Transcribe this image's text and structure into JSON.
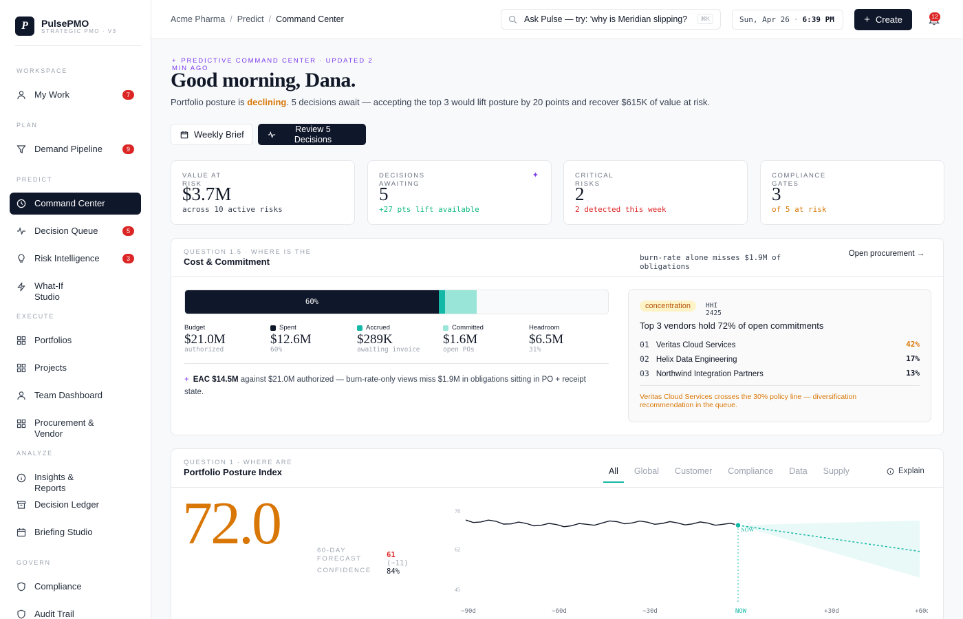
{
  "brand": {
    "logo_letter": "P",
    "name": "PulsePMO",
    "subtitle": "STRATEGIC PMO · V3"
  },
  "sidebar": {
    "sections": {
      "workspace": "WORKSPACE",
      "plan": "PLAN",
      "predict": "PREDICT",
      "execute": "EXECUTE",
      "analyze": "ANALYZE",
      "govern": "GOVERN"
    },
    "items": [
      {
        "label": "My Work",
        "badge": "7",
        "icon": "user-icon"
      },
      {
        "label": "Demand Pipeline",
        "badge": "9",
        "icon": "funnel-icon"
      },
      {
        "label": "Command Center",
        "icon": "clock-icon",
        "active": true
      },
      {
        "label": "Decision Queue",
        "badge": "5",
        "icon": "pulse-icon"
      },
      {
        "label": "Risk Intelligence",
        "badge": "3",
        "icon": "bulb-icon"
      },
      {
        "label": "What-If Studio",
        "icon": "bolt-icon"
      },
      {
        "label": "Portfolios",
        "icon": "grid-icon"
      },
      {
        "label": "Projects",
        "icon": "grid-icon"
      },
      {
        "label": "Team Dashboard",
        "icon": "user-icon"
      },
      {
        "label": "Procurement & Vendor",
        "icon": "grid-icon"
      },
      {
        "label": "Insights & Reports",
        "icon": "info-icon"
      },
      {
        "label": "Decision Ledger",
        "icon": "archive-icon"
      },
      {
        "label": "Briefing Studio",
        "icon": "calendar-icon"
      },
      {
        "label": "Compliance",
        "icon": "shield-icon"
      },
      {
        "label": "Audit Trail",
        "icon": "shield-icon"
      }
    ]
  },
  "header": {
    "breadcrumbs": [
      "Acme Pharma",
      "Predict",
      "Command Center"
    ],
    "ask_text": "Ask Pulse — try: 'why is Meridian slipping?",
    "ask_shortcut": "⌘K",
    "date": "Sun, Apr 26",
    "time": "6:39 PM",
    "create_label": "Create",
    "notifications": "12"
  },
  "hero": {
    "eyebrow": "PREDICTIVE COMMAND CENTER · UPDATED 2 MIN AGO",
    "greeting": "Good morning, Dana.",
    "summary_pre": "Portfolio posture is ",
    "summary_status": "declining",
    "summary_post": ". 5 decisions await — accepting the top 3 would lift posture by 20 points and recover $615K of value at risk.",
    "brief_button": "Weekly Brief",
    "review_button": "Review 5 Decisions"
  },
  "kpis": [
    {
      "label": "VALUE AT RISK",
      "value": "$3.7M",
      "sub": "across 10 active risks",
      "tone": "neutral"
    },
    {
      "label": "DECISIONS AWAITING",
      "value": "5",
      "sub": "+27 pts lift available",
      "tone": "green"
    },
    {
      "label": "CRITICAL RISKS",
      "value": "2",
      "sub": "2 detected this week",
      "tone": "red"
    },
    {
      "label": "COMPLIANCE GATES",
      "value": "3",
      "sub": "of 5 at risk",
      "tone": "orange"
    }
  ],
  "cost": {
    "question": "QUESTION 1.5 · WHERE IS THE",
    "title": "Cost & Commitment",
    "burn_note": "burn-rate alone misses $1.9M of obligations",
    "open_link": "Open procurement →",
    "bar": {
      "spent_pct": 60,
      "accrued_pct": 1.4,
      "committed_pct": 7.6,
      "spent_label": "60%"
    },
    "legend": [
      {
        "name": "Budget",
        "value": "$21.0M",
        "sub": "authorized",
        "swatch": ""
      },
      {
        "name": "Spent",
        "value": "$12.6M",
        "sub": "60%",
        "swatch": "#0f172a"
      },
      {
        "name": "Accrued",
        "value": "$289K",
        "sub": "awaiting invoice",
        "swatch": "#14b8a6"
      },
      {
        "name": "Committed",
        "value": "$1.6M",
        "sub": "open POs",
        "swatch": "#99e6d8"
      },
      {
        "name": "Headroom",
        "value": "$6.5M",
        "sub": "31%",
        "swatch": ""
      }
    ],
    "eac_bold": "EAC $14.5M",
    "eac_rest": " against $21.0M authorized — burn-rate-only views miss $1.9M in obligations sitting in PO + receipt state.",
    "vendor": {
      "pill": "concentration",
      "hhi_label": "HHI",
      "hhi_value": "2425",
      "title": "Top 3 vendors hold 72% of open commitments",
      "rows": [
        {
          "rank": "01",
          "name": "Veritas Cloud Services",
          "pct": "42%",
          "color": "#d97706"
        },
        {
          "rank": "02",
          "name": "Helix Data Engineering",
          "pct": "17%",
          "color": "#111827"
        },
        {
          "rank": "03",
          "name": "Northwind Integration Partners",
          "pct": "13%",
          "color": "#111827"
        }
      ],
      "warning": "Veritas Cloud Services crosses the 30% policy line — diversification recommendation in the queue."
    }
  },
  "posture": {
    "question": "QUESTION 1 · WHERE ARE",
    "title": "Portfolio Posture Index",
    "tabs": [
      "All",
      "Global",
      "Customer",
      "Compliance",
      "Data",
      "Supply"
    ],
    "active_tab": "All",
    "explain": "Explain",
    "score": "72.0",
    "forecast_label": "60-DAY FORECAST",
    "confidence_label": "CONFIDENCE",
    "forecast_value": "61",
    "forecast_delta": "(−11)",
    "confidence_value": "84%",
    "chart_data": {
      "type": "line",
      "ylim": [
        45,
        78
      ],
      "yticks": [
        "78",
        "62",
        "45"
      ],
      "xticks": [
        "−90d",
        "−60d",
        "−30d",
        "NOW",
        "+30d",
        "+60d"
      ],
      "now_label": "NOW",
      "history_days": [
        -90,
        -85,
        -80,
        -75,
        -70,
        -65,
        -60,
        -55,
        -50,
        -45,
        -40,
        -35,
        -30,
        -25,
        -20,
        -15,
        -10,
        -5,
        0
      ],
      "history": [
        74.2,
        73.4,
        73.7,
        72.6,
        72.8,
        72.0,
        72.3,
        71.8,
        72.4,
        72.9,
        73.5,
        73.0,
        73.3,
        72.8,
        73.0,
        72.6,
        72.9,
        72.4,
        72.0
      ],
      "forecast_days": [
        0,
        60
      ],
      "forecast": [
        72.0,
        61.0
      ],
      "band_upper": [
        72.0,
        74.0
      ],
      "band_lower": [
        72.0,
        50.0
      ]
    }
  }
}
